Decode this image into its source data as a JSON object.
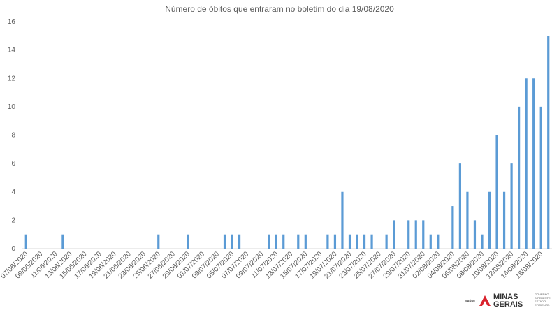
{
  "chart_data": {
    "type": "bar",
    "title": "Número de óbitos que entraram no boletim do dia 19/08/2020",
    "categories": [
      "07/06/2020",
      null,
      "09/06/2020",
      null,
      "11/06/2020",
      null,
      "13/06/2020",
      null,
      "15/06/2020",
      null,
      "17/06/2020",
      null,
      "19/06/2020",
      null,
      "21/06/2020",
      null,
      "23/06/2020",
      null,
      "25/06/2020",
      null,
      "27/06/2020",
      null,
      "29/06/2020",
      null,
      "01/07/2020",
      null,
      "03/07/2020",
      null,
      "05/07/2020",
      null,
      "07/07/2020",
      null,
      "09/07/2020",
      null,
      "11/07/2020",
      null,
      "13/07/2020",
      null,
      "15/07/2020",
      null,
      "17/07/2020",
      null,
      "19/07/2020",
      null,
      "21/07/2020",
      null,
      "23/07/2020",
      null,
      "25/07/2020",
      null,
      "27/07/2020",
      null,
      "29/07/2020",
      null,
      "31/07/2020",
      null,
      "02/08/2020",
      null,
      "04/08/2020",
      null,
      "06/08/2020",
      null,
      "08/08/2020",
      null,
      "10/08/2020",
      null,
      "12/08/2020",
      null,
      "14/08/2020",
      null,
      "16/08/2020",
      null
    ],
    "values": [
      1,
      0,
      0,
      0,
      0,
      1,
      0,
      0,
      0,
      0,
      0,
      0,
      0,
      0,
      0,
      0,
      0,
      0,
      1,
      0,
      0,
      0,
      1,
      0,
      0,
      0,
      0,
      1,
      1,
      1,
      0,
      0,
      0,
      1,
      1,
      1,
      0,
      1,
      1,
      0,
      0,
      1,
      1,
      4,
      1,
      1,
      1,
      1,
      0,
      1,
      2,
      0,
      2,
      2,
      2,
      1,
      1,
      0,
      3,
      6,
      4,
      2,
      1,
      4,
      8,
      4,
      6,
      10,
      12,
      12,
      10,
      15
    ],
    "color": "#5b9bd5",
    "ylim": [
      0,
      16
    ],
    "yticks": [
      0,
      2,
      4,
      6,
      8,
      10,
      12,
      14,
      16
    ],
    "grid": false
  },
  "logo": {
    "department": "SAÚDE",
    "name_line1": "MINAS",
    "name_line2": "GERAIS",
    "slogan_line1": "GOVERNO",
    "slogan_line2": "DIFERENTE.",
    "slogan_line3": "ESTADO",
    "slogan_line4": "EFICIENTE."
  }
}
